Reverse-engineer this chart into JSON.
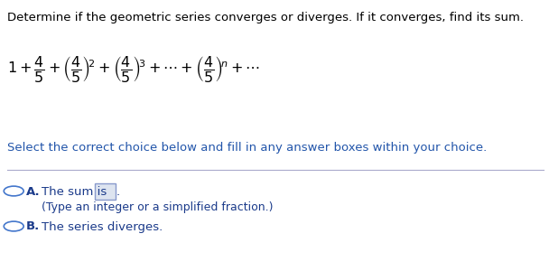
{
  "bg_color": "#ffffff",
  "title_text": "Determine if the geometric series converges or diverges. If it converges, find its sum.",
  "title_color": "#000000",
  "title_fontsize": 9.5,
  "formula_color": "#000000",
  "formula_fontsize": 11.5,
  "select_text": "Select the correct choice below and fill in any answer boxes within your choice.",
  "select_color": "#2255aa",
  "select_fontsize": 9.5,
  "option_a_label": "A.",
  "option_a_text": "The sum is",
  "option_a_sub": "(Type an integer or a simplified fraction.)",
  "option_b_label": "B.",
  "option_b_text": "The series diverges.",
  "option_color": "#1a3a8a",
  "option_label_color": "#1a3a8a",
  "option_fontsize": 9.5,
  "circle_color": "#4477cc",
  "line_color": "#aaaacc",
  "box_facecolor": "#dde4f0",
  "box_edgecolor": "#8899cc"
}
